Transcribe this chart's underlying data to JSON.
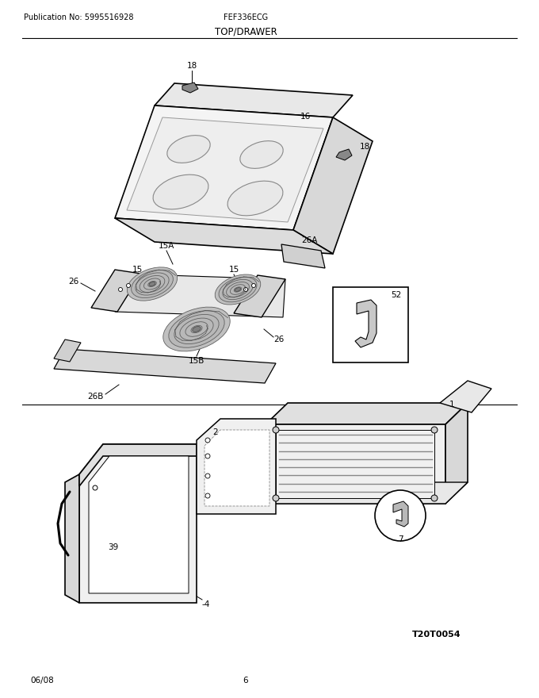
{
  "title": "TOP/DRAWER",
  "pub_no": "Publication No: 5995516928",
  "model": "FEF336ECG",
  "date": "06/08",
  "page": "6",
  "ref_code": "T20T0054",
  "bg_color": "#ffffff",
  "line_color": "#000000"
}
